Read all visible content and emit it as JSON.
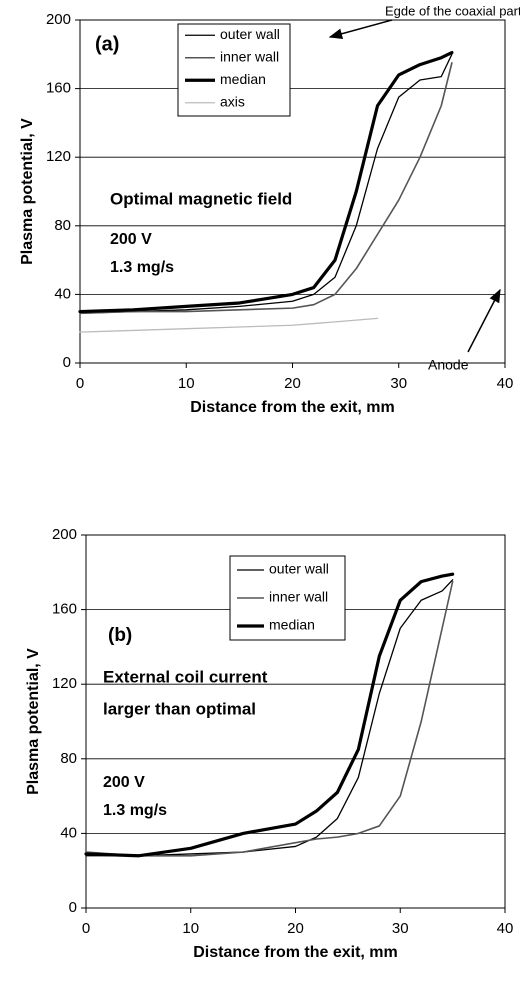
{
  "chart_data": [
    {
      "type": "line",
      "xlabel": "Distance from the exit, mm",
      "ylabel": "Plasma potential, V",
      "x": [
        0,
        5,
        10,
        15,
        20,
        22,
        24,
        26,
        28,
        30,
        32,
        34,
        35
      ],
      "series": [
        {
          "name": "outer wall",
          "color": "#000000",
          "width": 1.3,
          "values": [
            29,
            30,
            31,
            33,
            36,
            40,
            50,
            80,
            125,
            155,
            165,
            167,
            180
          ]
        },
        {
          "name": "inner wall",
          "color": "#555555",
          "width": 1.6,
          "values": [
            29,
            30,
            30,
            31,
            32,
            34,
            40,
            55,
            75,
            95,
            120,
            150,
            175
          ]
        },
        {
          "name": "median",
          "color": "#000000",
          "width": 3.2,
          "values": [
            30,
            31,
            33,
            35,
            40,
            44,
            60,
            100,
            150,
            168,
            174,
            178,
            181
          ]
        },
        {
          "name": "axis",
          "color": "#bbbbbb",
          "width": 1.3,
          "values": [
            18,
            19,
            20,
            21,
            22,
            23,
            24,
            25,
            26,
            null,
            null,
            null,
            null
          ]
        }
      ],
      "xlim": [
        0,
        40
      ],
      "xticks": [
        0,
        10,
        20,
        30,
        40
      ],
      "ylim": [
        0,
        200
      ],
      "yticks": [
        0,
        40,
        80,
        120,
        160,
        200
      ],
      "grid": true,
      "annotations": [
        "(a)",
        "Optimal magnetic field",
        "200 V",
        "1.3 mg/s",
        "Egde of the coaxial part",
        "Anode"
      ]
    },
    {
      "type": "line",
      "xlabel": "Distance from the exit, mm",
      "ylabel": "Plasma potential, V",
      "x": [
        0,
        5,
        10,
        15,
        20,
        22,
        24,
        26,
        28,
        30,
        32,
        34,
        35
      ],
      "series": [
        {
          "name": "outer wall",
          "color": "#000000",
          "width": 1.3,
          "values": [
            28,
            28,
            29,
            30,
            33,
            38,
            48,
            70,
            115,
            150,
            165,
            170,
            176
          ]
        },
        {
          "name": "inner wall",
          "color": "#555555",
          "width": 1.6,
          "values": [
            30,
            28,
            28,
            30,
            35,
            37,
            38,
            40,
            44,
            60,
            100,
            150,
            175
          ]
        },
        {
          "name": "median",
          "color": "#000000",
          "width": 3.2,
          "values": [
            29,
            28,
            32,
            40,
            45,
            52,
            62,
            85,
            135,
            165,
            175,
            178,
            179
          ]
        }
      ],
      "xlim": [
        0,
        40
      ],
      "xticks": [
        0,
        10,
        20,
        30,
        40
      ],
      "ylim": [
        0,
        200
      ],
      "yticks": [
        0,
        40,
        80,
        120,
        160,
        200
      ],
      "grid": true,
      "annotations": [
        "(b)",
        "External coil current",
        "larger than optimal",
        "200 V",
        "1.3 mg/s"
      ]
    }
  ]
}
